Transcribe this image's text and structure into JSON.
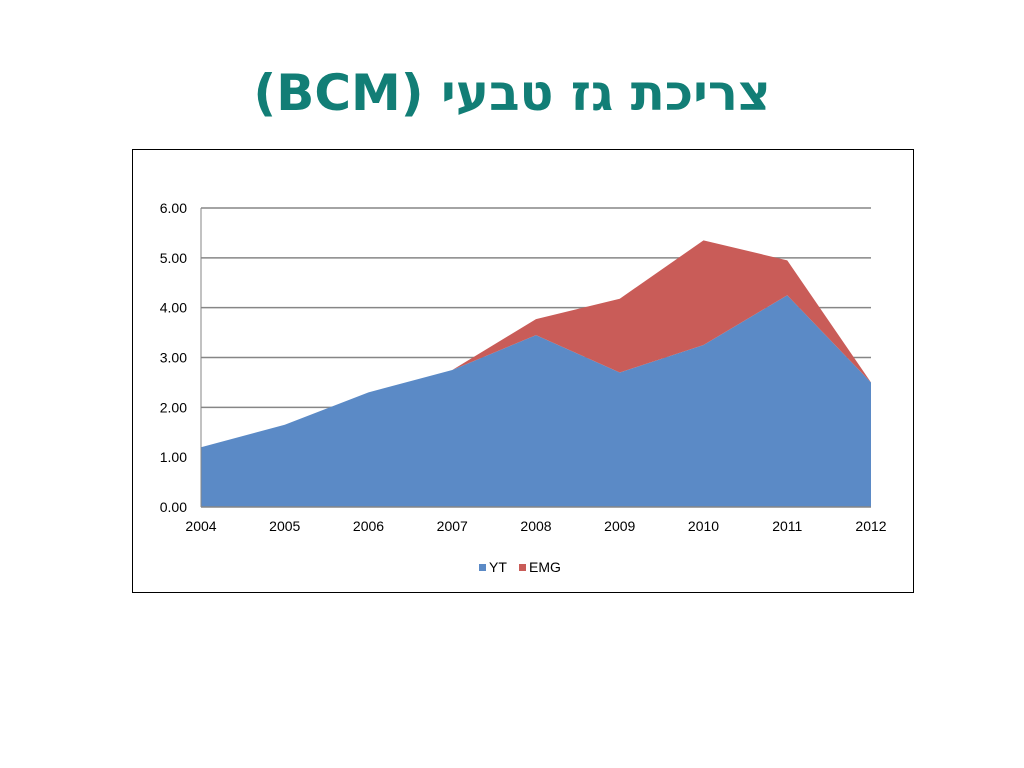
{
  "slide": {
    "title": "צריכת גז טבעי (BCM)"
  },
  "colors": {
    "title": "#127e76",
    "yt": "#5b8ac6",
    "emg": "#c95c58",
    "grid": "#868686"
  },
  "chart_data": {
    "type": "area",
    "stacked": true,
    "categories": [
      "2004",
      "2005",
      "2006",
      "2007",
      "2008",
      "2009",
      "2010",
      "2011",
      "2012"
    ],
    "series": [
      {
        "name": "YT",
        "values": [
          1.2,
          1.65,
          2.3,
          2.75,
          3.45,
          2.7,
          3.25,
          4.25,
          2.5
        ]
      },
      {
        "name": "EMG",
        "values": [
          0.0,
          0.0,
          0.0,
          0.0,
          0.32,
          1.48,
          2.1,
          0.7,
          0.0
        ]
      }
    ],
    "ylim": [
      0,
      6
    ],
    "yticks": [
      "0.00",
      "1.00",
      "2.00",
      "3.00",
      "4.00",
      "5.00",
      "6.00"
    ],
    "grid": true,
    "legend": "bottom",
    "title": "",
    "xlabel": "",
    "ylabel": ""
  }
}
